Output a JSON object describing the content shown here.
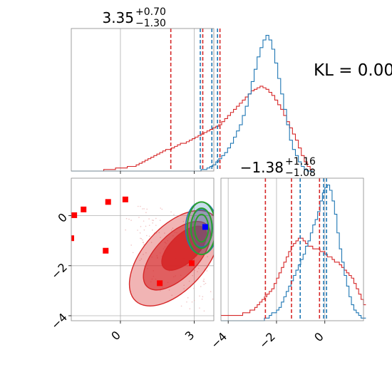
{
  "annotation": {
    "kl_text": "KL = 0.00"
  },
  "colors": {
    "red": "#d62728",
    "blue": "#1f77b4",
    "green": "#2ca02c",
    "grid": "#b0b0b0"
  },
  "chart_data": [
    {
      "type": "histogram",
      "panel": "top-left (parameter 1 marginal)",
      "title_value": "3.35",
      "title_plus": "+0.70",
      "title_minus": "−1.30",
      "xlim": [
        -2.0,
        3.8
      ],
      "grid_x": [
        0,
        3
      ],
      "quantiles": {
        "red": [
          2.05,
          3.35,
          4.05
        ],
        "blue": [
          3.25,
          3.72,
          3.95
        ]
      },
      "bin_edges_start": -2.0,
      "bin_width": 0.12,
      "series": [
        {
          "color": "red",
          "values": [
            0,
            0,
            0,
            0,
            0,
            0,
            0,
            0,
            0,
            0,
            0,
            1,
            1,
            1,
            1,
            2,
            2,
            2,
            2,
            3,
            3,
            3,
            4,
            5,
            6,
            7,
            8,
            9,
            10,
            11,
            12,
            13,
            14,
            14,
            15,
            16,
            17,
            18,
            18,
            19,
            20,
            21,
            22,
            23,
            24,
            25,
            26,
            27,
            28,
            29,
            30,
            32,
            34,
            36,
            38,
            40,
            42,
            44,
            46,
            48,
            50,
            52,
            53,
            54,
            55,
            54,
            53,
            51,
            49,
            46,
            43,
            40,
            36,
            32,
            28,
            24,
            20,
            15,
            10,
            6,
            3,
            1
          ]
        },
        {
          "color": "blue",
          "values": [
            0,
            0,
            0,
            0,
            0,
            0,
            0,
            0,
            0,
            0,
            0,
            0,
            0,
            0,
            0,
            0,
            0,
            0,
            0,
            0,
            0,
            0,
            0,
            0,
            0,
            0,
            0,
            0,
            0,
            0,
            0,
            0,
            0,
            0,
            0,
            0,
            0,
            0,
            0,
            0,
            0,
            0,
            0,
            0,
            1,
            1,
            2,
            3,
            4,
            6,
            8,
            10,
            12,
            15,
            18,
            22,
            26,
            30,
            36,
            42,
            50,
            58,
            66,
            74,
            80,
            85,
            88,
            85,
            79,
            70,
            60,
            50,
            40,
            30,
            20,
            14,
            10,
            6,
            3,
            1,
            0,
            0
          ]
        }
      ]
    },
    {
      "type": "histogram",
      "panel": "bottom-right (parameter 2 marginal)",
      "title_value": "−1.38",
      "title_plus": "+1.16",
      "title_minus": "−1.08",
      "xlim": [
        -4.3,
        1.6
      ],
      "xticks": [
        "−4",
        "−2",
        "0"
      ],
      "grid_x": [
        -4,
        -2,
        0
      ],
      "quantiles": {
        "red": [
          -2.46,
          -1.38,
          -0.22
        ],
        "blue": [
          -1.02,
          0.07,
          -0.05
        ]
      },
      "bin_edges_start": -4.3,
      "bin_width": 0.1,
      "series": [
        {
          "color": "red",
          "values": [
            2,
            2,
            2,
            2,
            2,
            2,
            2,
            2,
            2,
            3,
            3,
            3,
            4,
            4,
            5,
            6,
            7,
            8,
            9,
            10,
            11,
            12,
            14,
            16,
            18,
            20,
            22,
            24,
            26,
            28,
            29,
            30,
            31,
            31,
            30,
            29,
            28,
            28,
            27,
            27,
            27,
            26,
            26,
            25,
            24,
            24,
            23,
            22,
            22,
            21,
            20,
            19,
            18,
            17,
            16,
            14,
            12,
            10,
            8,
            6
          ]
        },
        {
          "color": "blue",
          "values": [
            0,
            0,
            0,
            0,
            0,
            0,
            0,
            0,
            0,
            0,
            0,
            0,
            0,
            0,
            0,
            0,
            0,
            0,
            1,
            1,
            2,
            3,
            3,
            4,
            5,
            7,
            9,
            11,
            13,
            15,
            17,
            19,
            21,
            23,
            25,
            28,
            30,
            33,
            36,
            38,
            41,
            45,
            48,
            50,
            51,
            49,
            45,
            40,
            33,
            27,
            22,
            17,
            13,
            9,
            6,
            4,
            3,
            2,
            1,
            1
          ]
        }
      ]
    },
    {
      "type": "contour",
      "panel": "bottom-left (joint density)",
      "xlim": [
        -2.0,
        3.8
      ],
      "ylim": [
        -4.2,
        1.5
      ],
      "xticks": [
        "0",
        "3"
      ],
      "yticks": [
        "0",
        "−2",
        "−4"
      ],
      "grid_x": [
        0,
        3
      ],
      "grid_y": [
        0,
        -2,
        -4
      ],
      "red_levels": [
        {
          "cx": 2.2,
          "cy": -1.7,
          "rx": 2.35,
          "ry": 1.25,
          "angle": -48,
          "fill_opacity": 0.35
        },
        {
          "cx": 2.3,
          "cy": -1.6,
          "rx": 1.75,
          "ry": 0.85,
          "angle": -46,
          "fill_opacity": 0.6
        },
        {
          "cx": 2.6,
          "cy": -1.3,
          "rx": 1.15,
          "ry": 0.55,
          "angle": -44,
          "fill_opacity": 0.9
        }
      ],
      "blue_levels": [
        {
          "cx": 3.3,
          "cy": -0.5,
          "rx": 0.65,
          "ry": 1.05
        },
        {
          "cx": 3.3,
          "cy": -0.5,
          "rx": 0.45,
          "ry": 0.75
        }
      ],
      "green_levels": [
        {
          "cx": 3.3,
          "cy": -0.5,
          "rx": 0.58,
          "ry": 1.05
        },
        {
          "cx": 3.3,
          "cy": -0.5,
          "rx": 0.43,
          "ry": 0.8
        },
        {
          "cx": 3.3,
          "cy": -0.5,
          "rx": 0.28,
          "ry": 0.55
        }
      ],
      "red_squares": [
        [
          -1.88,
          0.02
        ],
        [
          -1.5,
          0.25
        ],
        [
          -0.5,
          0.55
        ],
        [
          0.2,
          0.65
        ],
        [
          -2.0,
          -0.9
        ],
        [
          -0.6,
          -1.4
        ],
        [
          1.6,
          -2.7
        ],
        [
          2.9,
          -1.9
        ]
      ],
      "blue_square": [
        3.45,
        -0.45
      ]
    }
  ]
}
